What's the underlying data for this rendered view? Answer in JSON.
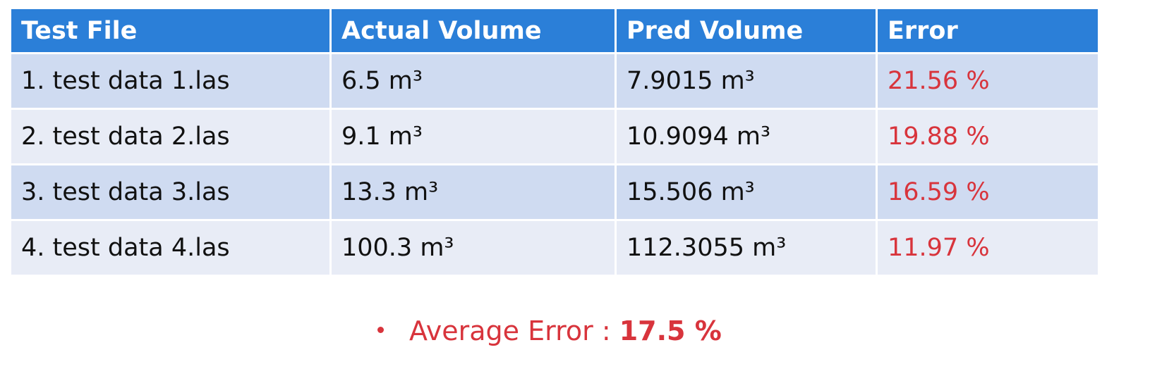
{
  "table": {
    "header": [
      "Test File",
      "Actual Volume",
      "Pred Volume",
      "Error"
    ],
    "rows": [
      [
        "1. test data 1.las",
        "6.5 m³",
        "7.9015 m³",
        "21.56 %"
      ],
      [
        "2. test data 2.las",
        "9.1 m³",
        "10.9094 m³",
        "19.88 %"
      ],
      [
        "3. test data 3.las",
        "13.3 m³",
        "15.506 m³",
        "16.59 %"
      ],
      [
        "4. test data 4.las",
        "100.3 m³",
        "112.3055 m³",
        "11.97 %"
      ]
    ]
  },
  "summary": {
    "label": "Average Error :",
    "value": "17.5 %"
  }
}
